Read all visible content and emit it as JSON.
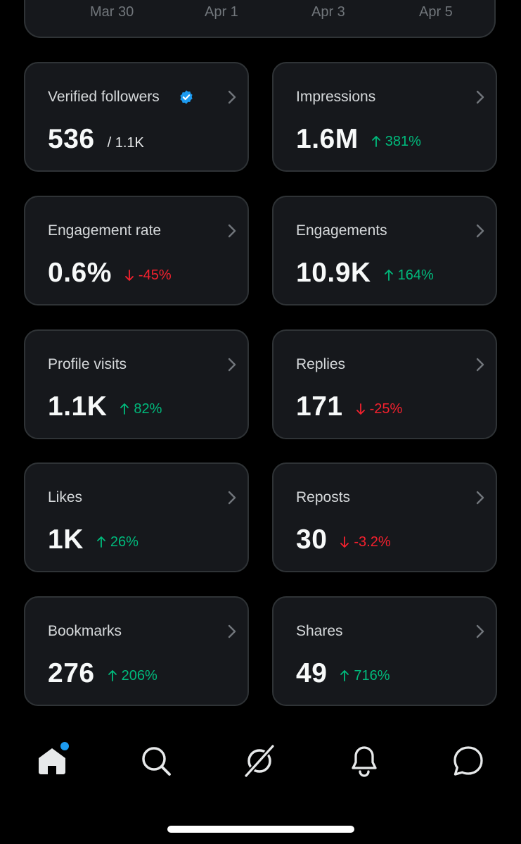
{
  "chart": {
    "x_labels": [
      "Mar 30",
      "Apr 1",
      "Apr 3",
      "Apr 5"
    ]
  },
  "metrics": [
    {
      "label": "Verified followers",
      "value": "536",
      "sub": "/ 1.1K"
    },
    {
      "label": "Impressions",
      "value": "1.6M",
      "delta": "381%",
      "direction": "up"
    },
    {
      "label": "Engagement rate",
      "value": "0.6%",
      "delta": "-45%",
      "direction": "down"
    },
    {
      "label": "Engagements",
      "value": "10.9K",
      "delta": "164%",
      "direction": "up"
    },
    {
      "label": "Profile visits",
      "value": "1.1K",
      "delta": "82%",
      "direction": "up"
    },
    {
      "label": "Replies",
      "value": "171",
      "delta": "-25%",
      "direction": "down"
    },
    {
      "label": "Likes",
      "value": "1K",
      "delta": "26%",
      "direction": "up"
    },
    {
      "label": "Reposts",
      "value": "30",
      "delta": "-3.2%",
      "direction": "down"
    },
    {
      "label": "Bookmarks",
      "value": "276",
      "delta": "206%",
      "direction": "up"
    },
    {
      "label": "Shares",
      "value": "49",
      "delta": "716%",
      "direction": "up"
    }
  ],
  "nav": {
    "items": [
      "home-icon",
      "search-icon",
      "grok-icon",
      "notifications-icon",
      "messages-icon"
    ],
    "home_has_notification": true
  },
  "colors": {
    "background": "#000000",
    "card": "#16181c",
    "border": "#2f3336",
    "up": "#00ba7c",
    "down": "#f4212e",
    "accent": "#1d9bf0"
  }
}
